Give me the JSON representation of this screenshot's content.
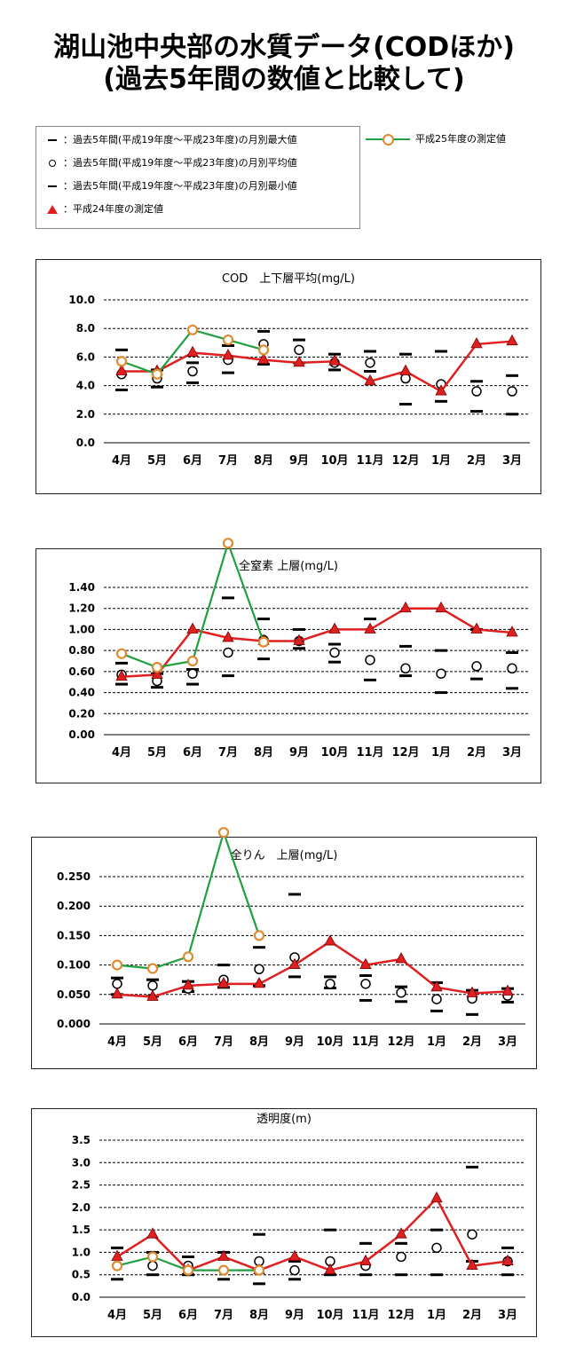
{
  "title_line1": "湖山池中央部の水質データ(CODほか)",
  "title_line2": "(過去5年間の数値と比較して)",
  "legend": {
    "max": "：過去5年間(平成19年度～平成23年度)の月別最大値",
    "avg": "：過去5年間(平成19年度～平成23年度)の月別平均値",
    "min": "：過去5年間(平成19年度～平成23年度)の月別最小値",
    "h24": "：平成24年度の測定値",
    "h25": "平成25年度の測定値"
  },
  "colors": {
    "h24": "#e02020",
    "h25_line": "#20a040",
    "h25_marker": "#e08a30"
  },
  "categories": [
    "4月",
    "5月",
    "6月",
    "7月",
    "8月",
    "9月",
    "10月",
    "11月",
    "12月",
    "1月",
    "2月",
    "3月"
  ],
  "chart_data": [
    {
      "type": "line",
      "title": "COD　上下層平均(mg/L)",
      "ylim": [
        0,
        10
      ],
      "yticks": [
        0,
        2,
        4,
        6,
        8,
        10
      ],
      "decimals": 1,
      "grid": true,
      "series": [
        {
          "name": "月別最大値",
          "values": [
            6.5,
            5.1,
            5.6,
            6.8,
            7.8,
            7.2,
            6.2,
            6.4,
            6.2,
            6.4,
            4.3,
            4.7
          ]
        },
        {
          "name": "月別平均値",
          "values": [
            4.8,
            4.5,
            5.0,
            5.8,
            6.9,
            6.5,
            5.6,
            5.6,
            4.5,
            4.1,
            3.6,
            3.6
          ]
        },
        {
          "name": "月別最小値",
          "values": [
            3.7,
            3.9,
            4.2,
            4.9,
            5.5,
            5.6,
            5.1,
            5.0,
            2.7,
            2.9,
            2.2,
            2.0
          ]
        },
        {
          "name": "平成24年度の測定値",
          "values": [
            5.0,
            5.0,
            6.3,
            6.1,
            5.8,
            5.6,
            5.7,
            4.3,
            5.0,
            3.6,
            6.9,
            7.1
          ]
        },
        {
          "name": "平成25年度の測定値",
          "values": [
            5.7,
            4.8,
            7.9,
            7.2,
            6.5,
            null,
            null,
            null,
            null,
            null,
            null,
            null
          ]
        }
      ]
    },
    {
      "type": "line",
      "title": "全窒素 上層(mg/L)",
      "ylim": [
        0,
        1.4
      ],
      "yticks": [
        0,
        0.2,
        0.4,
        0.6,
        0.8,
        1.0,
        1.2,
        1.4
      ],
      "decimals": 2,
      "grid": true,
      "series": [
        {
          "name": "月別最大値",
          "values": [
            0.68,
            0.58,
            0.62,
            1.3,
            1.1,
            1.0,
            0.86,
            1.1,
            0.84,
            0.8,
            1.0,
            0.78
          ]
        },
        {
          "name": "月別平均値",
          "values": [
            0.57,
            0.51,
            0.58,
            0.78,
            0.9,
            0.89,
            0.78,
            0.71,
            0.63,
            0.58,
            0.65,
            0.63
          ]
        },
        {
          "name": "月別最小値",
          "values": [
            0.48,
            0.45,
            0.48,
            0.56,
            0.72,
            0.82,
            0.69,
            0.52,
            0.56,
            0.4,
            0.53,
            0.44
          ]
        },
        {
          "name": "平成24年度の測定値",
          "values": [
            0.55,
            0.57,
            1.0,
            0.92,
            0.89,
            0.89,
            1.0,
            1.0,
            1.2,
            1.2,
            1.0,
            0.97
          ]
        },
        {
          "name": "平成25年度の測定値",
          "values": [
            0.77,
            0.64,
            0.7,
            1.82,
            0.88,
            null,
            null,
            null,
            null,
            null,
            null,
            null
          ]
        }
      ]
    },
    {
      "type": "line",
      "title": "全りん　上層(mg/L)",
      "ylim": [
        0,
        0.25
      ],
      "yticks": [
        0,
        0.05,
        0.1,
        0.15,
        0.2,
        0.25
      ],
      "decimals": 3,
      "grid": true,
      "series": [
        {
          "name": "月別最大値",
          "values": [
            0.078,
            0.075,
            0.072,
            0.1,
            0.13,
            0.22,
            0.08,
            0.082,
            0.063,
            0.07,
            0.057,
            0.06
          ]
        },
        {
          "name": "月別平均値",
          "values": [
            0.068,
            0.065,
            0.06,
            0.075,
            0.093,
            0.113,
            0.068,
            0.068,
            0.053,
            0.042,
            0.043,
            0.048
          ]
        },
        {
          "name": "月別最小値",
          "values": [
            0.05,
            0.047,
            0.055,
            0.062,
            0.065,
            0.08,
            0.061,
            0.04,
            0.038,
            0.022,
            0.016,
            0.037
          ]
        },
        {
          "name": "平成24年度の測定値",
          "values": [
            0.05,
            0.046,
            0.065,
            0.068,
            0.068,
            0.1,
            0.14,
            0.1,
            0.11,
            0.062,
            0.052,
            0.055
          ]
        },
        {
          "name": "平成25年度の測定値",
          "values": [
            0.1,
            0.094,
            0.114,
            0.325,
            0.15,
            null,
            null,
            null,
            null,
            null,
            null,
            null
          ]
        }
      ]
    },
    {
      "type": "line",
      "title": "透明度(m)",
      "ylim": [
        0,
        3.5
      ],
      "yticks": [
        0,
        0.5,
        1.0,
        1.5,
        2.0,
        2.5,
        3.0,
        3.5
      ],
      "decimals": 1,
      "grid": true,
      "series": [
        {
          "name": "月別最大値",
          "values": [
            1.1,
            1.0,
            0.9,
            1.0,
            1.4,
            0.8,
            1.5,
            1.2,
            1.2,
            1.5,
            2.9,
            1.1
          ]
        },
        {
          "name": "月別平均値",
          "values": [
            0.7,
            0.7,
            0.7,
            0.6,
            0.8,
            0.6,
            0.8,
            0.7,
            0.9,
            1.1,
            1.4,
            0.8
          ]
        },
        {
          "name": "月別最小値",
          "values": [
            0.4,
            0.5,
            0.5,
            0.4,
            0.3,
            0.4,
            0.5,
            0.5,
            0.5,
            0.5,
            0.8,
            0.5
          ]
        },
        {
          "name": "平成24年度の測定値",
          "values": [
            0.9,
            1.4,
            0.6,
            0.9,
            0.6,
            0.9,
            0.6,
            0.8,
            1.4,
            2.2,
            0.7,
            0.8
          ]
        },
        {
          "name": "平成25年度の測定値",
          "values": [
            0.7,
            0.9,
            0.6,
            0.6,
            0.6,
            null,
            null,
            null,
            null,
            null,
            null,
            null
          ]
        }
      ]
    }
  ]
}
